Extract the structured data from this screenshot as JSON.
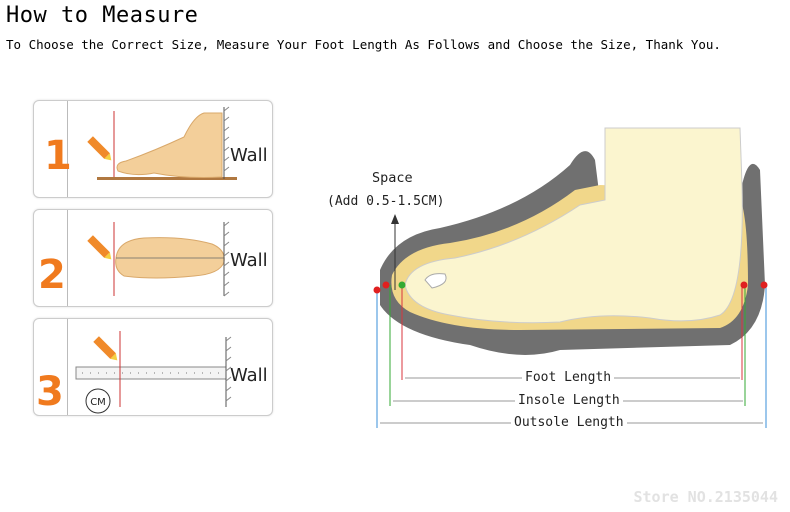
{
  "header": {
    "title": "How to Measure",
    "subtitle": "To Choose the Correct Size, Measure Your Foot Length As Follows and Choose the Size, Thank You."
  },
  "steps": [
    {
      "number": "1",
      "wall_label": "Wall"
    },
    {
      "number": "2",
      "wall_label": "Wall"
    },
    {
      "number": "3",
      "wall_label": "Wall",
      "unit_badge": "CM"
    }
  ],
  "diagram": {
    "space_label": "Space",
    "space_note": "(Add 0.5-1.5CM)",
    "foot_length": "Foot Length",
    "insole_length": "Insole Length",
    "outsole_length": "Outsole Length"
  },
  "watermark": "Store NO.2135044",
  "colors": {
    "step_number": "#f07a1e",
    "pencil": "#f08a2a",
    "foot": "#f3cf9a",
    "sole": "#6e6e6e",
    "foot_line": "#d9363e",
    "insole_line": "#33aa33",
    "outsole_line": "#3a8fd8",
    "point": "#e02020"
  }
}
